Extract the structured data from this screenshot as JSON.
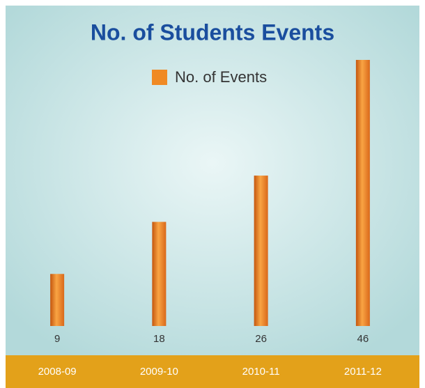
{
  "chart_data": {
    "type": "bar",
    "title": "No. of Students Events",
    "categories": [
      "2008-09",
      "2009-10",
      "2010-11",
      "2011-12"
    ],
    "series": [
      {
        "name": "No. of Events",
        "color": "#f08a24",
        "values": [
          9,
          18,
          26,
          46
        ]
      }
    ]
  }
}
